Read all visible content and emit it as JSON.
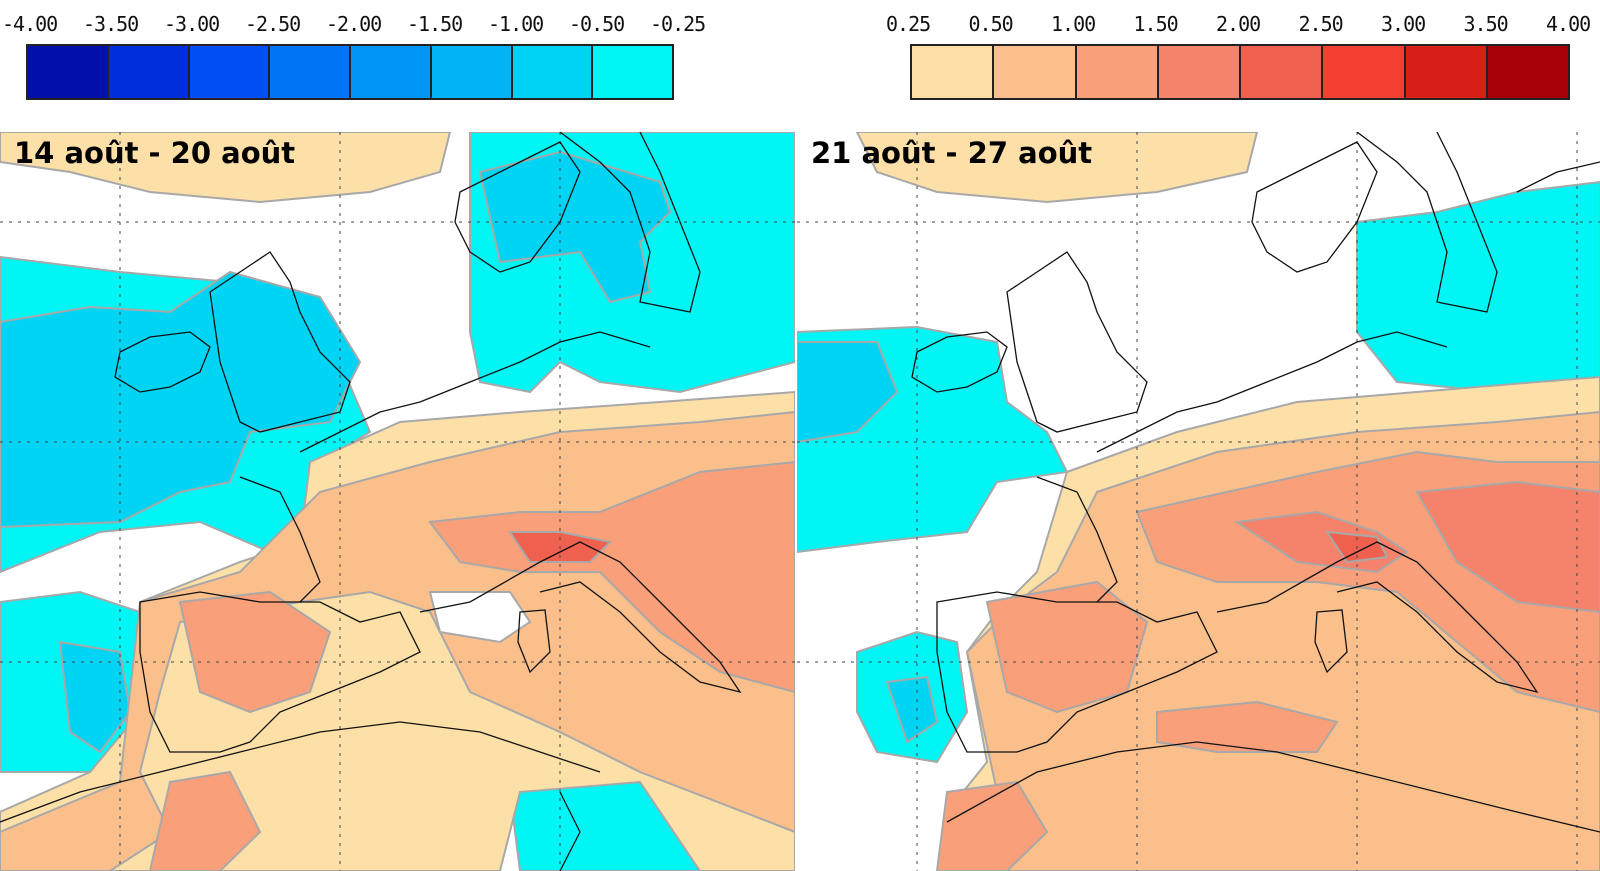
{
  "scales": {
    "negative": {
      "ticks": [
        "-4.00",
        "-3.50",
        "-3.00",
        "-2.50",
        "-2.00",
        "-1.50",
        "-1.00",
        "-0.50",
        "-0.25"
      ],
      "colors": [
        "#0010a8",
        "#0030dd",
        "#0050f5",
        "#0075f5",
        "#0096f5",
        "#00b4f5",
        "#00d4f5",
        "#00f5f5"
      ]
    },
    "positive": {
      "ticks": [
        "0.25",
        "0.50",
        "1.00",
        "1.50",
        "2.00",
        "2.50",
        "3.00",
        "3.50",
        "4.00"
      ],
      "colors": [
        "#fde0a8",
        "#fbbf8c",
        "#f9a07a",
        "#f5826a",
        "#f0604e",
        "#f44030",
        "#d82018",
        "#a80008"
      ]
    }
  },
  "panels": [
    {
      "title": "14 août - 20 août"
    },
    {
      "title": "21 août - 27 août"
    }
  ],
  "colors": {
    "light_cyan": "#00f5f5",
    "cyan": "#00d4f5",
    "blue": "#00b4f5",
    "deep_blue": "#0096f5",
    "light_orange": "#fde0a8",
    "orange": "#fbbf8c",
    "salmon": "#f9a07a",
    "red_orange": "#f5826a",
    "red": "#f0604e",
    "coast": "#111111",
    "contour": "#a8a8a8",
    "grid": "#444444"
  }
}
